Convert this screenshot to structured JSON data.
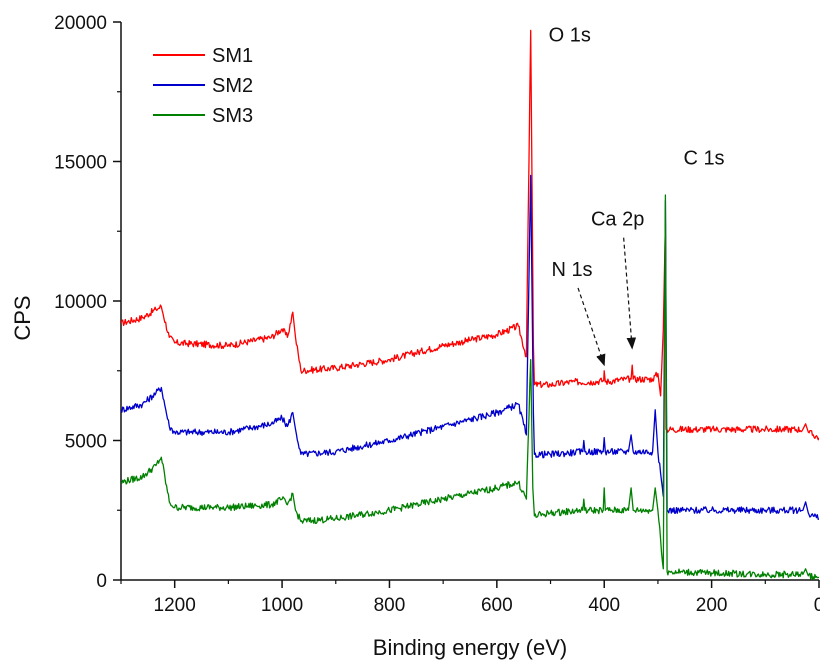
{
  "chart_data": {
    "type": "line",
    "title": "",
    "xlabel": "Binding energy (eV)",
    "ylabel": "CPS",
    "xlim": [
      1300,
      0
    ],
    "ylim": [
      0,
      20000
    ],
    "x_reversed": true,
    "x_ticks": [
      1200,
      1000,
      800,
      600,
      400,
      200,
      0
    ],
    "x_tick_labels": [
      "1200",
      "1000",
      "800",
      "600",
      "400",
      "200",
      "0"
    ],
    "y_ticks": [
      0,
      5000,
      10000,
      15000,
      20000
    ],
    "y_tick_labels": [
      "0",
      "5000",
      "10000",
      "15000",
      "20000"
    ],
    "grid": false,
    "legend_position": "top-left",
    "series": [
      {
        "name": "SM1",
        "color": "#ff0000",
        "points": [
          [
            1300,
            9200
          ],
          [
            1260,
            9400
          ],
          [
            1235,
            9700
          ],
          [
            1225,
            9800
          ],
          [
            1210,
            8700
          ],
          [
            1200,
            8500
          ],
          [
            1100,
            8400
          ],
          [
            1020,
            8700
          ],
          [
            1000,
            9000
          ],
          [
            990,
            8700
          ],
          [
            980,
            9600
          ],
          [
            975,
            8700
          ],
          [
            965,
            7500
          ],
          [
            900,
            7600
          ],
          [
            800,
            7900
          ],
          [
            700,
            8400
          ],
          [
            600,
            8800
          ],
          [
            560,
            9100
          ],
          [
            545,
            8000
          ],
          [
            537,
            19700
          ],
          [
            532,
            8400
          ],
          [
            530,
            7000
          ],
          [
            500,
            7000
          ],
          [
            460,
            7100
          ],
          [
            420,
            7100
          ],
          [
            401,
            7150
          ],
          [
            400,
            7500
          ],
          [
            398,
            7100
          ],
          [
            360,
            7200
          ],
          [
            350,
            7200
          ],
          [
            348,
            7700
          ],
          [
            346,
            7200
          ],
          [
            310,
            7200
          ],
          [
            300,
            7400
          ],
          [
            295,
            6600
          ],
          [
            290,
            9000
          ],
          [
            286,
            12800
          ],
          [
            285,
            5400
          ],
          [
            200,
            5400
          ],
          [
            100,
            5400
          ],
          [
            30,
            5400
          ],
          [
            25,
            5600
          ],
          [
            20,
            5300
          ],
          [
            0,
            5100
          ]
        ]
      },
      {
        "name": "SM2",
        "color": "#0000cc",
        "points": [
          [
            1300,
            6100
          ],
          [
            1260,
            6300
          ],
          [
            1235,
            6700
          ],
          [
            1225,
            6900
          ],
          [
            1210,
            5500
          ],
          [
            1200,
            5300
          ],
          [
            1100,
            5300
          ],
          [
            1020,
            5600
          ],
          [
            1000,
            5800
          ],
          [
            990,
            5500
          ],
          [
            980,
            6000
          ],
          [
            975,
            5400
          ],
          [
            965,
            4500
          ],
          [
            900,
            4600
          ],
          [
            800,
            5000
          ],
          [
            700,
            5500
          ],
          [
            600,
            6000
          ],
          [
            560,
            6300
          ],
          [
            545,
            5200
          ],
          [
            537,
            14500
          ],
          [
            532,
            6000
          ],
          [
            530,
            4500
          ],
          [
            500,
            4500
          ],
          [
            440,
            4600
          ],
          [
            438,
            5000
          ],
          [
            436,
            4600
          ],
          [
            402,
            4600
          ],
          [
            400,
            5100
          ],
          [
            398,
            4600
          ],
          [
            355,
            4600
          ],
          [
            350,
            5200
          ],
          [
            346,
            4600
          ],
          [
            310,
            4600
          ],
          [
            305,
            6100
          ],
          [
            300,
            4600
          ],
          [
            290,
            3000
          ],
          [
            286,
            13600
          ],
          [
            283,
            2500
          ],
          [
            200,
            2500
          ],
          [
            100,
            2500
          ],
          [
            30,
            2500
          ],
          [
            25,
            2800
          ],
          [
            20,
            2400
          ],
          [
            0,
            2200
          ]
        ]
      },
      {
        "name": "SM3",
        "color": "#008000",
        "points": [
          [
            1300,
            3500
          ],
          [
            1260,
            3700
          ],
          [
            1235,
            4100
          ],
          [
            1225,
            4400
          ],
          [
            1210,
            2800
          ],
          [
            1200,
            2600
          ],
          [
            1100,
            2600
          ],
          [
            1020,
            2700
          ],
          [
            1000,
            2900
          ],
          [
            990,
            2700
          ],
          [
            980,
            3100
          ],
          [
            975,
            2500
          ],
          [
            965,
            2100
          ],
          [
            900,
            2200
          ],
          [
            800,
            2500
          ],
          [
            700,
            2900
          ],
          [
            600,
            3300
          ],
          [
            560,
            3500
          ],
          [
            545,
            2900
          ],
          [
            537,
            7900
          ],
          [
            533,
            3300
          ],
          [
            530,
            2300
          ],
          [
            500,
            2400
          ],
          [
            440,
            2500
          ],
          [
            438,
            2900
          ],
          [
            436,
            2500
          ],
          [
            402,
            2500
          ],
          [
            400,
            3300
          ],
          [
            398,
            2500
          ],
          [
            355,
            2500
          ],
          [
            350,
            3300
          ],
          [
            346,
            2500
          ],
          [
            310,
            2500
          ],
          [
            305,
            3300
          ],
          [
            300,
            2500
          ],
          [
            290,
            400
          ],
          [
            286,
            13800
          ],
          [
            283,
            300
          ],
          [
            200,
            250
          ],
          [
            100,
            200
          ],
          [
            30,
            200
          ],
          [
            25,
            400
          ],
          [
            20,
            150
          ],
          [
            0,
            100
          ]
        ]
      }
    ],
    "annotations": [
      {
        "text": "O 1s",
        "x": 537,
        "y": 19300
      },
      {
        "text": "C 1s",
        "x": 286,
        "y": 14900
      },
      {
        "text": "Ca 2p",
        "x": 375,
        "y": 12700,
        "arrow_to": [
          348,
          8300
        ]
      },
      {
        "text": "N 1s",
        "x": 460,
        "y": 10900,
        "arrow_to": [
          400,
          7700
        ]
      }
    ]
  }
}
